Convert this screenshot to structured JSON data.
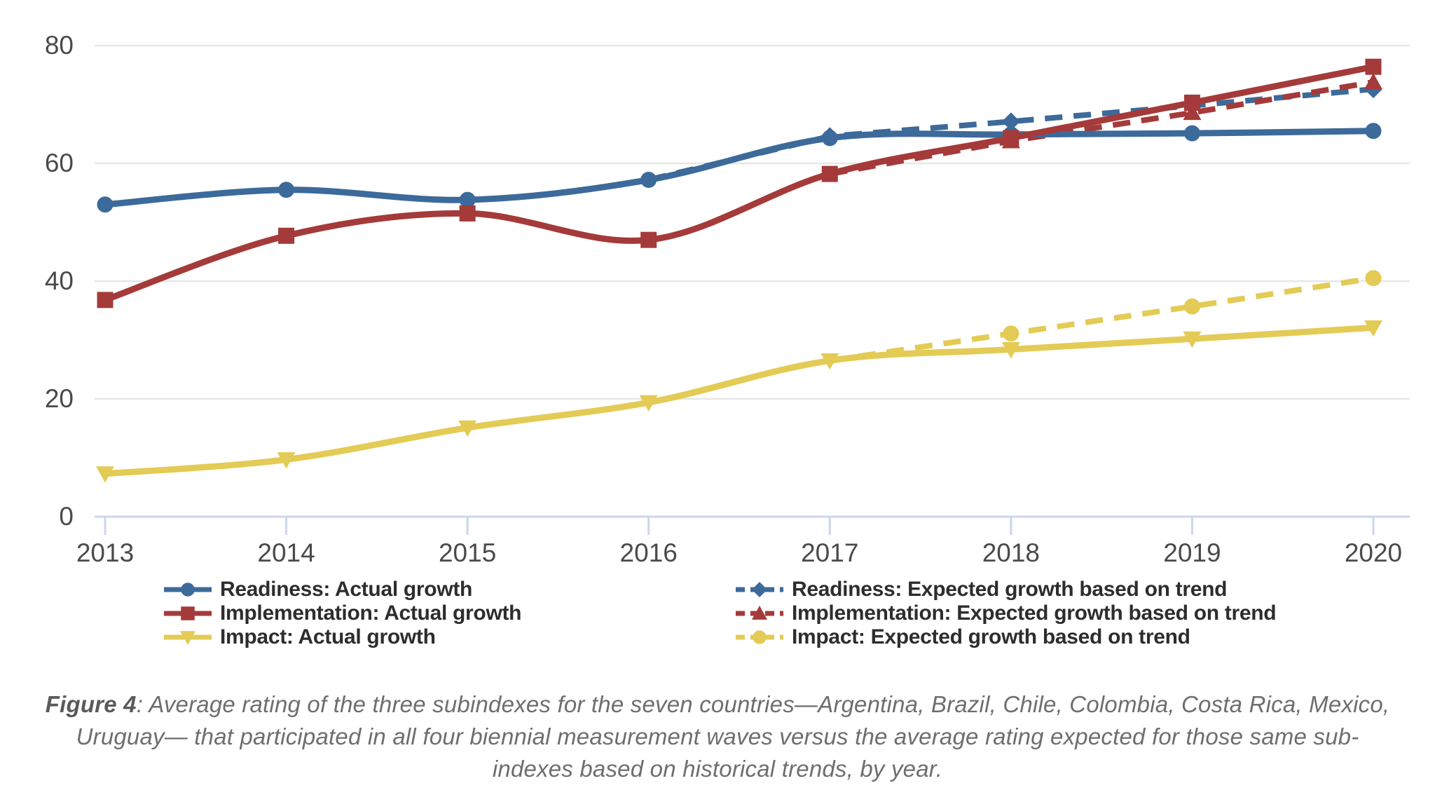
{
  "chart_data": {
    "type": "line",
    "title": "",
    "xlabel": "",
    "ylabel": "",
    "x": [
      2013,
      2014,
      2015,
      2016,
      2017,
      2018,
      2019,
      2020
    ],
    "ylim": [
      0,
      80
    ],
    "yticks": [
      0,
      20,
      40,
      60,
      80
    ],
    "grid": "horizontal",
    "legend_position": "bottom-two-columns",
    "series": [
      {
        "name": "Readiness: Expected growth based on trend",
        "color": "#3C6A9A",
        "marker": "diamond",
        "dashed": true,
        "smooth": false,
        "values": [
          null,
          null,
          null,
          57.2,
          64.6,
          67.1,
          69.8,
          72.6
        ]
      },
      {
        "name": "Implementation: Expected growth based on trend",
        "color": "#A53A3A",
        "marker": "triangle-up",
        "dashed": true,
        "smooth": false,
        "values": [
          null,
          null,
          null,
          null,
          58.2,
          63.8,
          68.6,
          73.8
        ]
      },
      {
        "name": "Impact: Expected growth based on trend",
        "color": "#E3CB55",
        "marker": "circle",
        "dashed": true,
        "smooth": false,
        "values": [
          null,
          null,
          null,
          null,
          26.5,
          31.1,
          35.7,
          40.5
        ]
      },
      {
        "name": "Impact: Actual growth",
        "color": "#E3CB55",
        "marker": "triangle-down",
        "dashed": false,
        "smooth": true,
        "values": [
          7.3,
          9.7,
          15.1,
          19.4,
          26.5,
          28.4,
          30.2,
          32.1
        ]
      },
      {
        "name": "Readiness: Actual growth",
        "color": "#3C6A9A",
        "marker": "circle",
        "dashed": false,
        "smooth": true,
        "values": [
          53.0,
          55.5,
          53.8,
          57.2,
          64.3,
          64.9,
          65.1,
          65.5
        ]
      },
      {
        "name": "Implementation: Actual growth",
        "color": "#A53A3A",
        "marker": "square",
        "dashed": false,
        "smooth": true,
        "values": [
          36.8,
          47.7,
          51.5,
          47.0,
          58.2,
          64.3,
          70.3,
          76.4
        ]
      }
    ],
    "colors": {
      "gridline": "#e7e7e7",
      "axis_line": "#ccd6ea",
      "tick_mark": "#ccd6ea",
      "axis_label": "#4a4a4a"
    }
  },
  "legend": {
    "left_items": [
      {
        "series_index": 4,
        "label": "Readiness: Actual growth"
      },
      {
        "series_index": 5,
        "label": "Implementation: Actual growth"
      },
      {
        "series_index": 3,
        "label": "Impact: Actual growth"
      }
    ],
    "right_items": [
      {
        "series_index": 0,
        "label": "Readiness: Expected growth based on trend"
      },
      {
        "series_index": 1,
        "label": "Implementation: Expected growth based on trend"
      },
      {
        "series_index": 2,
        "label": "Impact: Expected growth based on trend"
      }
    ]
  },
  "caption": {
    "prefix": "Figure 4",
    "line1": ": Average rating of the three subindexes for the seven countries—Argentina, Brazil, Chile, Colombia, Costa Rica, Mexico,",
    "line2": "Uruguay— that participated in all four biennial measurement waves versus the average rating expected for those same sub-",
    "line3": "indexes based on historical trends, by year."
  }
}
